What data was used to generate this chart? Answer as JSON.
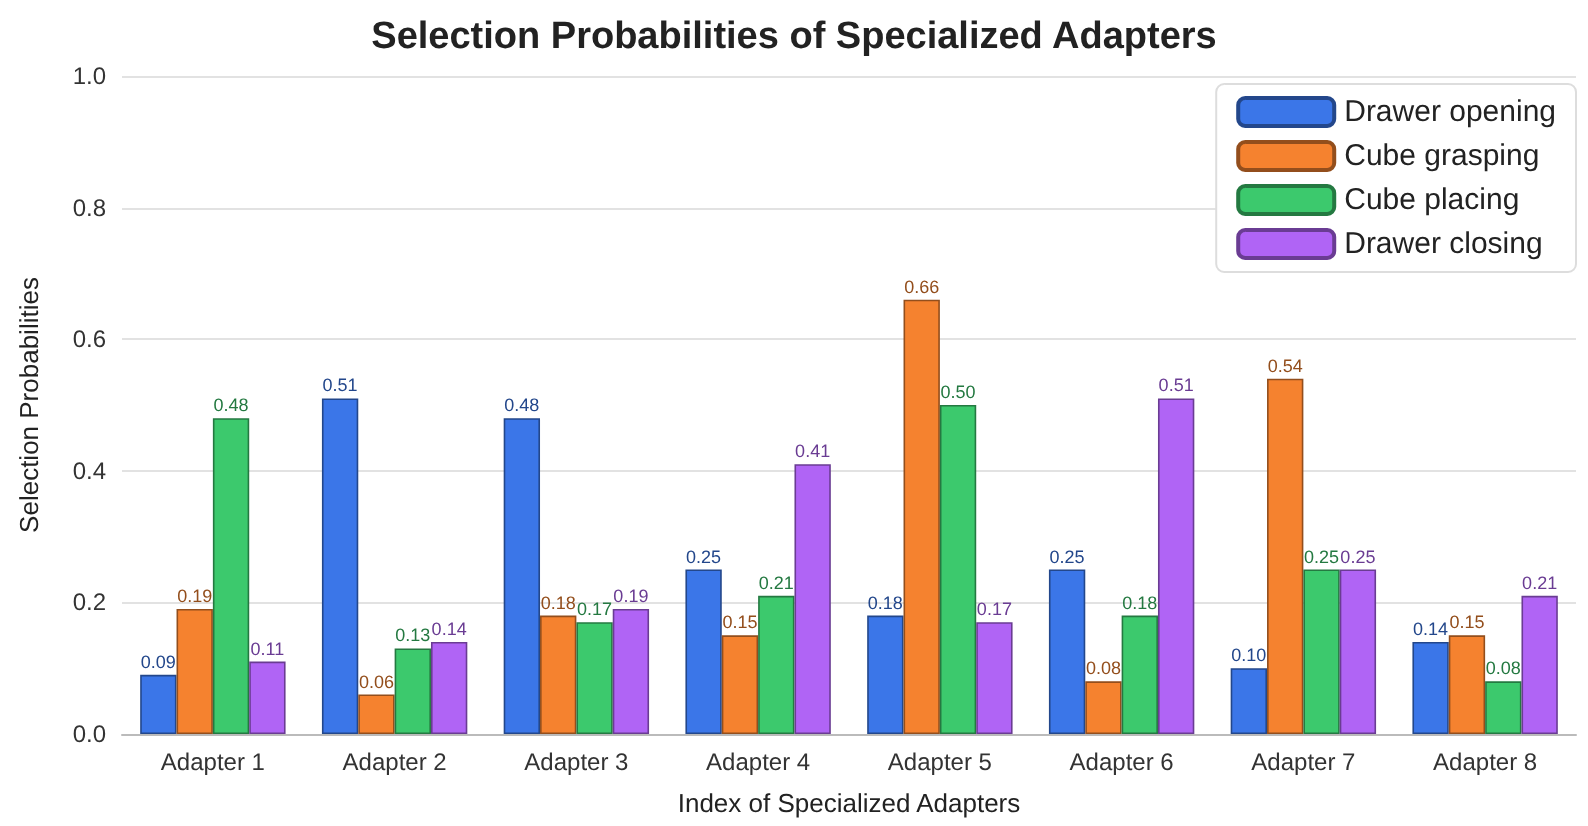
{
  "chart_data": {
    "type": "bar",
    "title": "Selection Probabilities of Specialized Adapters",
    "xlabel": "Index of Specialized Adapters",
    "ylabel": "Selection Probabilities",
    "categories": [
      "Adapter 1",
      "Adapter 2",
      "Adapter 3",
      "Adapter 4",
      "Adapter 5",
      "Adapter 6",
      "Adapter 7",
      "Adapter 8"
    ],
    "series": [
      {
        "name": "Drawer opening",
        "color": "#3b76e8",
        "values": [
          0.09,
          0.51,
          0.48,
          0.25,
          0.18,
          0.25,
          0.1,
          0.14
        ],
        "value_labels": [
          "0.09",
          "0.51",
          "0.48",
          "0.25",
          "0.18",
          "0.25",
          "0.10",
          "0.14"
        ]
      },
      {
        "name": "Cube grasping",
        "color": "#f5822f",
        "values": [
          0.19,
          0.06,
          0.18,
          0.15,
          0.66,
          0.08,
          0.54,
          0.15
        ],
        "value_labels": [
          "0.19",
          "0.06",
          "0.18",
          "0.15",
          "0.66",
          "0.08",
          "0.54",
          "0.15"
        ]
      },
      {
        "name": "Cube placing",
        "color": "#3cc96d",
        "values": [
          0.48,
          0.13,
          0.17,
          0.21,
          0.5,
          0.18,
          0.25,
          0.08
        ],
        "value_labels": [
          "0.48",
          "0.13",
          "0.17",
          "0.21",
          "0.50",
          "0.18",
          "0.25",
          "0.08"
        ]
      },
      {
        "name": "Drawer closing",
        "color": "#b064f5",
        "values": [
          0.11,
          0.14,
          0.19,
          0.41,
          0.17,
          0.51,
          0.25,
          0.21
        ],
        "value_labels": [
          "0.11",
          "0.14",
          "0.19",
          "0.41",
          "0.17",
          "0.51",
          "0.25",
          "0.21"
        ]
      }
    ],
    "ylim": [
      0,
      1
    ],
    "yticks": [
      {
        "value": 0,
        "label": "0.0"
      },
      {
        "value": 0.2,
        "label": "0.2"
      },
      {
        "value": 0.4,
        "label": "0.4"
      },
      {
        "value": 0.6,
        "label": "0.6"
      },
      {
        "value": 0.8,
        "label": "0.8"
      },
      {
        "value": 1,
        "label": "1.0"
      }
    ],
    "grid": "y",
    "legend": "top right"
  }
}
